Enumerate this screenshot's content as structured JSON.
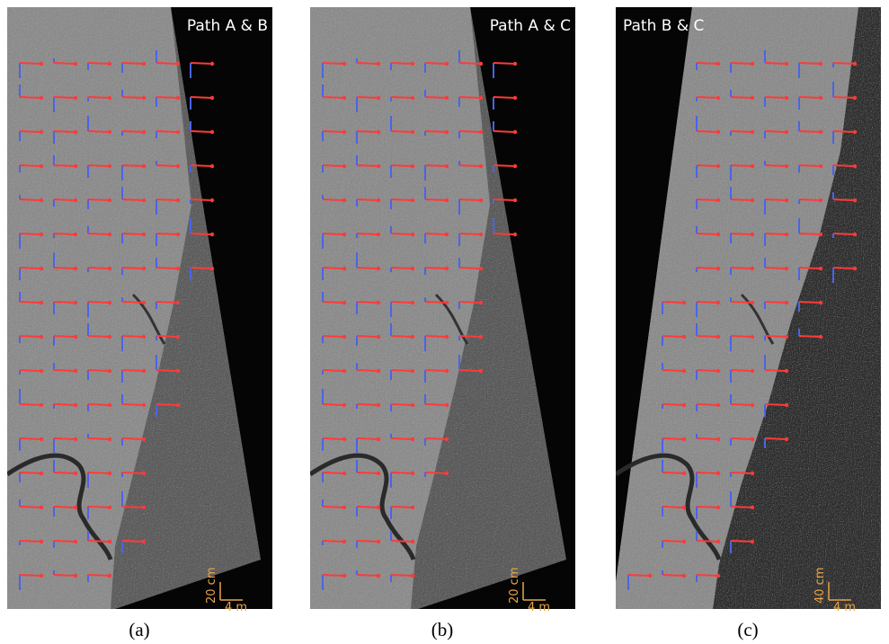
{
  "panels": [
    {
      "title": "Path A & B",
      "scale_vertical": "20 cm",
      "scale_horizontal": "4 m",
      "caption": "(a)"
    },
    {
      "title": "Path A & C",
      "scale_vertical": "20 cm",
      "scale_horizontal": "4 m",
      "caption": "(b)"
    },
    {
      "title": "Path B & C",
      "scale_vertical": "40 cm",
      "scale_horizontal": "4 m",
      "caption": "(c)"
    }
  ]
}
